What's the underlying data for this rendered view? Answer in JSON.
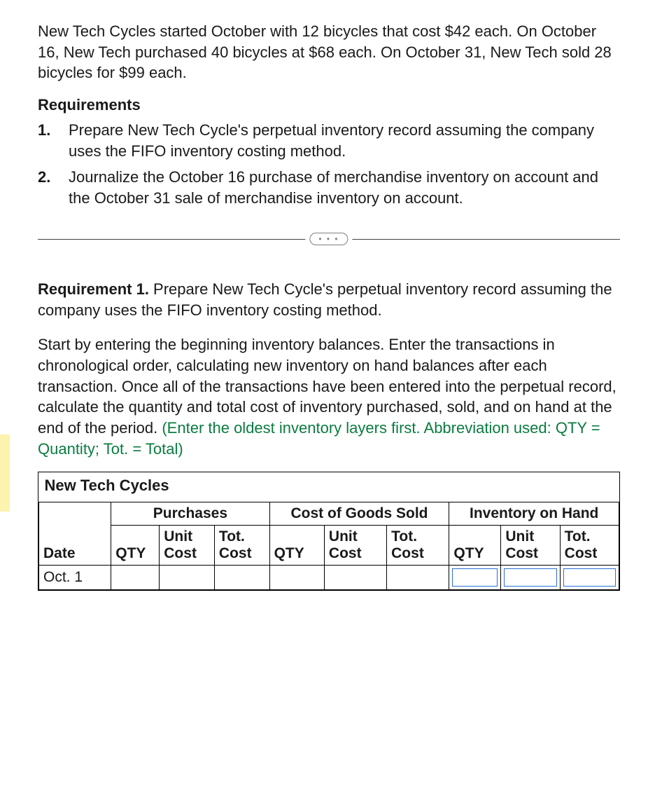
{
  "problem": {
    "text": "New Tech Cycles started October with 12 bicycles that cost $42 each. On October 16, New Tech purchased 40 bicycles at $68 each. On October 31, New Tech sold 28 bicycles for $99 each."
  },
  "requirements": {
    "heading": "Requirements",
    "items": [
      {
        "num": "1.",
        "text": "Prepare New Tech Cycle's perpetual inventory record assuming the company uses the FIFO inventory costing method."
      },
      {
        "num": "2.",
        "text": "Journalize the October 16 purchase of merchandise inventory on account and the October 31 sale of merchandise inventory on account."
      }
    ]
  },
  "divider": {
    "dots": "• • •"
  },
  "req1": {
    "label": "Requirement 1.",
    "text": " Prepare New Tech Cycle's perpetual inventory record assuming the company uses the FIFO inventory costing method."
  },
  "instructions": {
    "black": "Start by entering the beginning inventory balances. Enter the transactions in chronological order, calculating new inventory on hand balances after each transaction. Once all of the transactions have been entered into the perpetual record, calculate the quantity and total cost of inventory purchased, sold, and on hand at the end of the period. ",
    "green": "(Enter the oldest inventory layers first. Abbreviation used: QTY = Quantity; Tot. = Total)"
  },
  "table": {
    "company": "New Tech Cycles",
    "groups": {
      "purchases": "Purchases",
      "cogs": "Cost of Goods Sold",
      "onhand": "Inventory on Hand"
    },
    "cols": {
      "date": "Date",
      "qty": "QTY",
      "unit_l1": "Unit",
      "unit_l2": "Cost",
      "tot_l1": "Tot.",
      "tot_l2": "Cost"
    },
    "rows": [
      {
        "date": "Oct. 1"
      }
    ],
    "style": {
      "border_color": "#000000",
      "input_border_color": "#2b6fd6",
      "font_size_pt": 16,
      "header_weight": 700
    }
  },
  "accent": {
    "color": "#fcf3b0"
  },
  "instruction_green_color": "#0a7c3f"
}
